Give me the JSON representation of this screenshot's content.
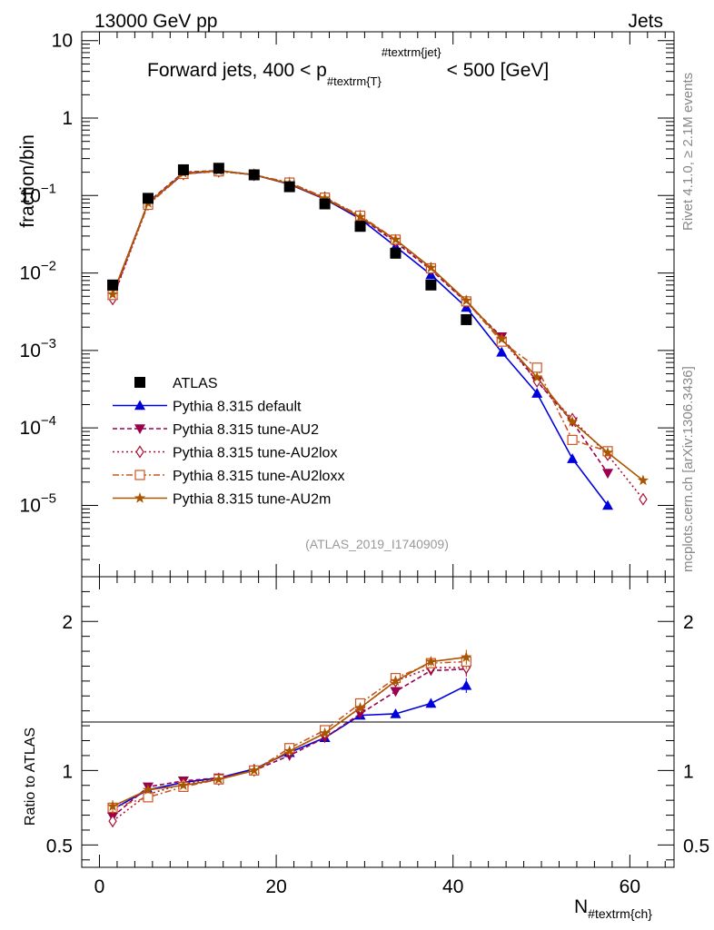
{
  "header": {
    "energy_label": "13000 GeV pp",
    "process_label": "Jets"
  },
  "side_labels": {
    "rivet": "Rivet 4.1.0, ≥ 2.1M events",
    "source": "mcplots.cern.ch [arXiv:1306.3436]"
  },
  "watermark": "(ATLAS_2019_I1740909)",
  "chart_data": {
    "type": "line",
    "title_main": "Forward jets, 400 < p",
    "title_sub": "#textrm{T}",
    "title_sup": "#textrm{jet}",
    "title_end": "< 500 [GeV]",
    "xlabel_main": "N",
    "xlabel_sub": "#textrm{ch}",
    "ylabel": "fraction/bin",
    "ratio_ylabel": "Ratio to ATLAS",
    "xlim": [
      -2,
      65
    ],
    "ylim": [
      1.2e-06,
      13
    ],
    "ratio_ylim": [
      0.35,
      2.3
    ],
    "xticks": [
      0,
      20,
      40,
      60
    ],
    "xtick_labels": [
      "0",
      "20",
      "40",
      "60"
    ],
    "yticks_main": [
      {
        "value": 10,
        "base": "10",
        "exp": ""
      },
      {
        "value": 1,
        "base": "1",
        "exp": ""
      },
      {
        "value": 0.1,
        "base": "10",
        "exp": "−1"
      },
      {
        "value": 0.01,
        "base": "10",
        "exp": "−2"
      },
      {
        "value": 0.001,
        "base": "10",
        "exp": "−3"
      },
      {
        "value": 0.0001,
        "base": "10",
        "exp": "−4"
      },
      {
        "value": 1e-05,
        "base": "10",
        "exp": "−5"
      }
    ],
    "ratio_yticks": [
      {
        "value": 2,
        "label": "2"
      },
      {
        "value": 1,
        "label": "1"
      },
      {
        "value": 0.5,
        "label": "0.5"
      }
    ],
    "data": {
      "name": "ATLAS",
      "color": "#000000",
      "x": [
        1.5,
        5.5,
        9.5,
        13.5,
        17.5,
        21.5,
        25.5,
        29.5,
        33.5,
        37.5,
        41.5
      ],
      "y": [
        0.007,
        0.092,
        0.215,
        0.225,
        0.185,
        0.13,
        0.078,
        0.04,
        0.018,
        0.007,
        0.0025
      ]
    },
    "series": [
      {
        "name": "Pythia 8.315 default",
        "color": "#0000dd",
        "marker": "triangle-up",
        "dash": "",
        "x": [
          1.5,
          5.5,
          9.5,
          13.5,
          17.5,
          21.5,
          25.5,
          29.5,
          33.5,
          37.5,
          41.5,
          45.5,
          49.5,
          53.5,
          57.5
        ],
        "y": [
          0.0052,
          0.08,
          0.19,
          0.21,
          0.185,
          0.14,
          0.09,
          0.05,
          0.022,
          0.0095,
          0.0036,
          0.00095,
          0.00028,
          4e-05,
          1e-05
        ],
        "ratio": [
          0.74,
          0.87,
          0.92,
          0.95,
          1.01,
          1.12,
          1.22,
          1.37,
          1.38,
          1.45,
          1.57
        ],
        "ratio_err": [
          0.04,
          0.02,
          0.01,
          0.01,
          0.01,
          0.01,
          0.01,
          0.02,
          0.02,
          0.03,
          0.05
        ]
      },
      {
        "name": "Pythia 8.315 tune-AU2",
        "color": "#99004d",
        "marker": "triangle-down",
        "dash": "5,3",
        "x": [
          1.5,
          5.5,
          9.5,
          13.5,
          17.5,
          21.5,
          25.5,
          29.5,
          33.5,
          37.5,
          41.5,
          45.5,
          49.5,
          53.5,
          57.5
        ],
        "y": [
          0.0047,
          0.082,
          0.2,
          0.21,
          0.185,
          0.14,
          0.09,
          0.052,
          0.025,
          0.011,
          0.0042,
          0.0015,
          0.0004,
          0.00012,
          2.6e-05
        ],
        "ratio": [
          0.69,
          0.89,
          0.93,
          0.95,
          1.0,
          1.1,
          1.22,
          1.38,
          1.53,
          1.67,
          1.68
        ],
        "ratio_err": [
          0.04,
          0.02,
          0.01,
          0.01,
          0.01,
          0.01,
          0.01,
          0.02,
          0.02,
          0.03,
          0.05
        ]
      },
      {
        "name": "Pythia 8.315 tune-AU2lox",
        "color": "#aa1133",
        "marker": "diamond-open",
        "dash": "2,3",
        "x": [
          1.5,
          5.5,
          9.5,
          13.5,
          17.5,
          21.5,
          25.5,
          29.5,
          33.5,
          37.5,
          41.5,
          45.5,
          49.5,
          53.5,
          57.5,
          61.5
        ],
        "y": [
          0.0046,
          0.077,
          0.19,
          0.205,
          0.185,
          0.145,
          0.094,
          0.054,
          0.026,
          0.0115,
          0.0043,
          0.0014,
          0.0004,
          0.00013,
          4.5e-05,
          1.2e-05
        ],
        "ratio": [
          0.66,
          0.84,
          0.91,
          0.94,
          1.0,
          1.13,
          1.25,
          1.42,
          1.6,
          1.69,
          1.69
        ],
        "ratio_err": [
          0.04,
          0.02,
          0.01,
          0.01,
          0.01,
          0.01,
          0.01,
          0.02,
          0.02,
          0.03,
          0.05
        ]
      },
      {
        "name": "Pythia 8.315 tune-AU2loxx",
        "color": "#cc5522",
        "marker": "square-open",
        "dash": "7,3,2,3",
        "x": [
          1.5,
          5.5,
          9.5,
          13.5,
          17.5,
          21.5,
          25.5,
          29.5,
          33.5,
          37.5,
          41.5,
          45.5,
          49.5,
          53.5,
          57.5
        ],
        "y": [
          0.0052,
          0.076,
          0.19,
          0.205,
          0.185,
          0.147,
          0.094,
          0.055,
          0.027,
          0.0115,
          0.0043,
          0.0013,
          0.0006,
          7e-05,
          5e-05
        ],
        "ratio": [
          0.75,
          0.82,
          0.89,
          0.94,
          1.0,
          1.15,
          1.27,
          1.45,
          1.62,
          1.72,
          1.73
        ],
        "ratio_err": [
          0.04,
          0.02,
          0.01,
          0.01,
          0.01,
          0.01,
          0.01,
          0.02,
          0.02,
          0.03,
          0.05
        ]
      },
      {
        "name": "Pythia 8.315 tune-AU2m",
        "color": "#aa5500",
        "marker": "star",
        "dash": "",
        "x": [
          1.5,
          5.5,
          9.5,
          13.5,
          17.5,
          21.5,
          25.5,
          29.5,
          33.5,
          37.5,
          41.5,
          45.5,
          49.5,
          53.5,
          57.5,
          61.5
        ],
        "y": [
          0.0053,
          0.08,
          0.195,
          0.21,
          0.185,
          0.142,
          0.092,
          0.053,
          0.027,
          0.0117,
          0.0044,
          0.0014,
          0.00045,
          0.00012,
          4.8e-05,
          2.1e-05
        ],
        "ratio": [
          0.76,
          0.87,
          0.9,
          0.94,
          1.0,
          1.13,
          1.25,
          1.42,
          1.6,
          1.73,
          1.76
        ],
        "ratio_err": [
          0.04,
          0.02,
          0.01,
          0.01,
          0.01,
          0.01,
          0.01,
          0.02,
          0.02,
          0.03,
          0.05
        ]
      }
    ]
  }
}
